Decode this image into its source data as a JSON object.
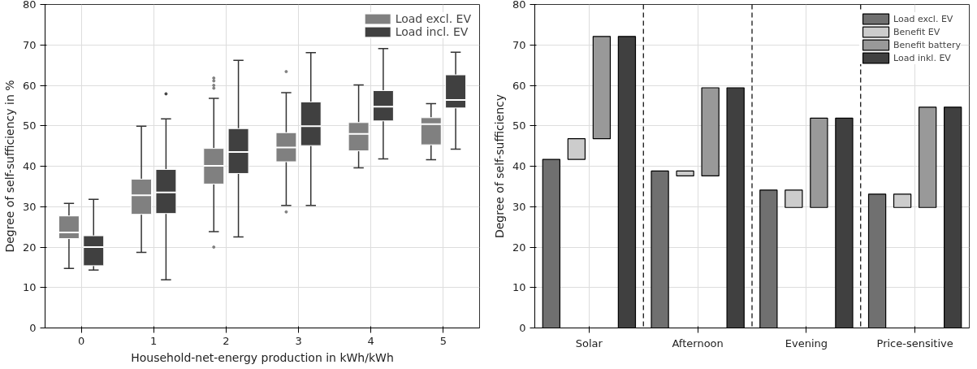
{
  "chart_data": [
    {
      "type": "box",
      "categories": [
        "0",
        "1",
        "2",
        "3",
        "4",
        "5"
      ],
      "xlabel": "Household-net-energy production in kWh/kWh",
      "ylabel": "Degree of self-sufficiency in %",
      "ylim": [
        0,
        80
      ],
      "yticks": [
        0,
        10,
        20,
        30,
        40,
        50,
        60,
        70,
        80
      ],
      "grid": true,
      "legend": "top right",
      "series": [
        {
          "name": "Load excl. EV",
          "color": "#808080",
          "boxes": [
            {
              "low": 14.7,
              "q1": 22.1,
              "median": 23.6,
              "q3": 27.7,
              "high": 30.8
            },
            {
              "low": 18.7,
              "q1": 28.1,
              "median": 32.8,
              "q3": 36.8,
              "high": 49.9
            },
            {
              "low": 23.8,
              "q1": 35.6,
              "median": 40.1,
              "q3": 44.4,
              "high": 56.8,
              "outliers": [
                61.8,
                61.1,
                60.0,
                59.3,
                20.0
              ]
            },
            {
              "low": 30.3,
              "q1": 41.1,
              "median": 44.6,
              "q3": 48.3,
              "high": 58.2,
              "outliers": [
                63.4,
                28.7
              ]
            },
            {
              "low": 39.6,
              "q1": 43.8,
              "median": 48.0,
              "q3": 50.8,
              "high": 60.1
            },
            {
              "low": 41.6,
              "q1": 45.3,
              "median": 50.4,
              "q3": 52.0,
              "high": 55.5
            }
          ]
        },
        {
          "name": "Load incl. EV",
          "color": "#404040",
          "boxes": [
            {
              "low": 14.3,
              "q1": 15.4,
              "median": 20.0,
              "q3": 22.8,
              "high": 31.8
            },
            {
              "low": 11.9,
              "q1": 28.3,
              "median": 33.5,
              "q3": 39.2,
              "high": 51.7,
              "outliers": [
                57.9
              ]
            },
            {
              "low": 22.5,
              "q1": 38.2,
              "median": 43.5,
              "q3": 49.3,
              "high": 66.2
            },
            {
              "low": 30.3,
              "q1": 45.1,
              "median": 49.9,
              "q3": 55.9,
              "high": 68.1
            },
            {
              "low": 41.8,
              "q1": 51.2,
              "median": 54.7,
              "q3": 58.7,
              "high": 69.1
            },
            {
              "low": 44.2,
              "q1": 54.4,
              "median": 56.4,
              "q3": 62.6,
              "high": 68.2
            }
          ]
        }
      ]
    },
    {
      "type": "bar",
      "categories": [
        "Solar",
        "Afternoon",
        "Evening",
        "Price-sensitive"
      ],
      "ylabel": "Degree of self-sufficiency",
      "ylim": [
        0,
        80
      ],
      "yticks": [
        0,
        10,
        20,
        30,
        40,
        50,
        60,
        70,
        80
      ],
      "grid": true,
      "legend": "top right",
      "series": [
        {
          "name": "Load excl. EV",
          "color": "#707070",
          "values": [
            41.7,
            38.8,
            34.1,
            33.1
          ]
        },
        {
          "name": "Benefit EV",
          "color": "#cccccc",
          "base": [
            41.7,
            38.8,
            34.1,
            33.1
          ],
          "values": [
            5.1,
            -1.2,
            -4.3,
            -3.3
          ]
        },
        {
          "name": "Benefit battery",
          "color": "#999999",
          "base": [
            46.8,
            37.6,
            29.8,
            29.8
          ],
          "values": [
            25.3,
            21.8,
            22.1,
            24.8
          ]
        },
        {
          "name": "Load inkl. EV",
          "color": "#404040",
          "values": [
            72.1,
            59.4,
            51.9,
            54.6
          ]
        }
      ]
    }
  ]
}
